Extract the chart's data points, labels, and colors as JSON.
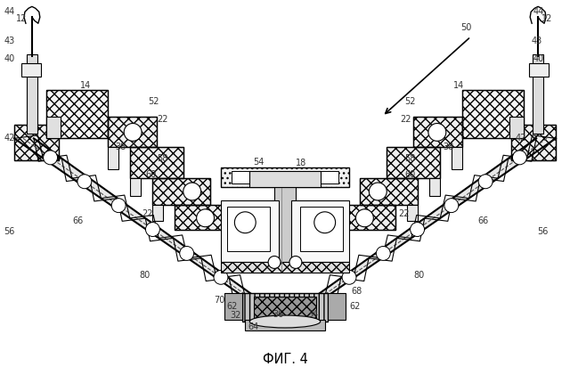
{
  "title": "ФИГ. 4",
  "bg_color": "#ffffff",
  "fig_width": 6.4,
  "fig_height": 4.21,
  "dpi": 100
}
